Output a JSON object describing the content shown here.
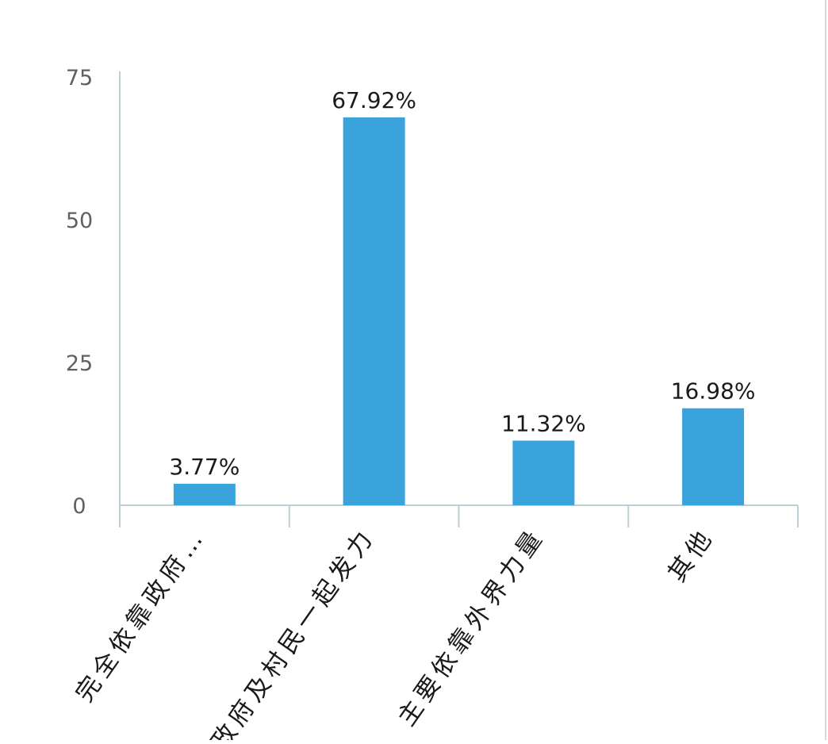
{
  "chart_data": {
    "type": "bar",
    "categories": [
      "完全依靠政府…",
      "政府及村民一起发力",
      "主要依靠外界力量",
      "其他"
    ],
    "values": [
      3.77,
      67.92,
      11.32,
      16.98
    ],
    "data_labels": [
      "3.77%",
      "67.92%",
      "11.32%",
      "16.98%"
    ],
    "y_ticks": [
      0,
      25,
      50,
      75
    ],
    "ylim": [
      0,
      75
    ],
    "title": "",
    "xlabel": "",
    "ylabel": "",
    "grid": false,
    "legend": "none",
    "bar_color": "#3ba3dc",
    "axis_color": "#bfcfd5"
  }
}
